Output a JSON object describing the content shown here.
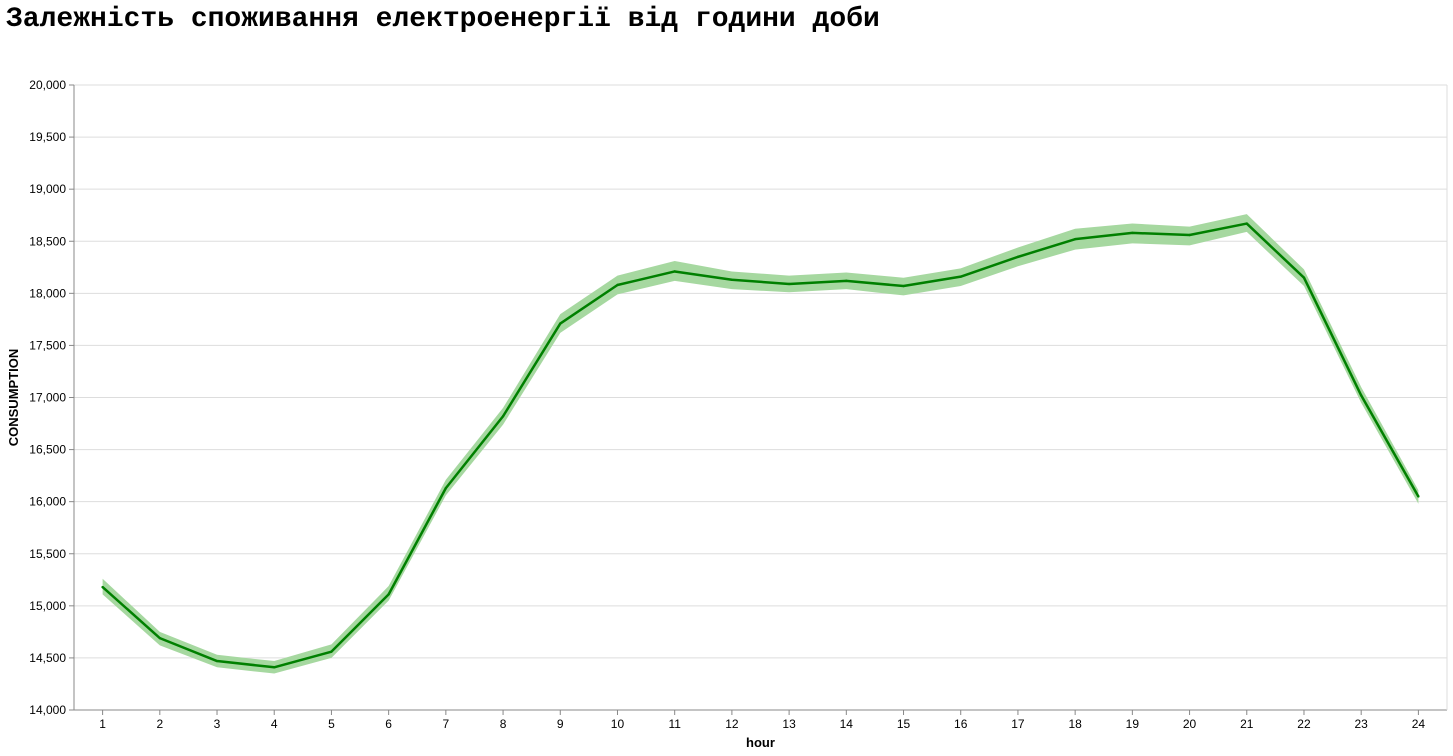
{
  "chart_data": {
    "type": "line",
    "title": "Залежність споживання електроенергії від години доби",
    "xlabel": "hour",
    "ylabel": "CONSUMPTION",
    "x": [
      1,
      2,
      3,
      4,
      5,
      6,
      7,
      8,
      9,
      10,
      11,
      12,
      13,
      14,
      15,
      16,
      17,
      18,
      19,
      20,
      21,
      22,
      23,
      24
    ],
    "xlim": [
      0.5,
      24.5
    ],
    "ylim": [
      14000,
      20000
    ],
    "yticks": [
      14000,
      14500,
      15000,
      15500,
      16000,
      16500,
      17000,
      17500,
      18000,
      18500,
      19000,
      19500,
      20000
    ],
    "ytick_labels": [
      "14,000",
      "14,500",
      "15,000",
      "15,500",
      "16,000",
      "16,500",
      "17,000",
      "17,500",
      "18,000",
      "18,500",
      "19,000",
      "19,500",
      "20,000"
    ],
    "grid": true,
    "series": [
      {
        "values": [
          15180,
          14690,
          14470,
          14410,
          14560,
          15110,
          16130,
          16820,
          17710,
          18080,
          18210,
          18130,
          18090,
          18120,
          18070,
          18160,
          18350,
          18520,
          18580,
          18560,
          18670,
          18150,
          17020,
          16050
        ],
        "ci_lower": [
          15110,
          14620,
          14410,
          14350,
          14500,
          15050,
          16060,
          16740,
          17620,
          17990,
          18120,
          18040,
          18010,
          18040,
          17980,
          18070,
          18260,
          18420,
          18480,
          18460,
          18590,
          18070,
          16950,
          15980
        ],
        "ci_upper": [
          15260,
          14750,
          14530,
          14470,
          14630,
          15190,
          16210,
          16900,
          17800,
          18170,
          18310,
          18210,
          18170,
          18200,
          18150,
          18240,
          18440,
          18620,
          18670,
          18640,
          18760,
          18230,
          17100,
          16110
        ]
      }
    ],
    "colors": {
      "line": "#008000",
      "band": "#a6d8a0",
      "grid": "#dddddd",
      "axis": "#888888"
    }
  }
}
